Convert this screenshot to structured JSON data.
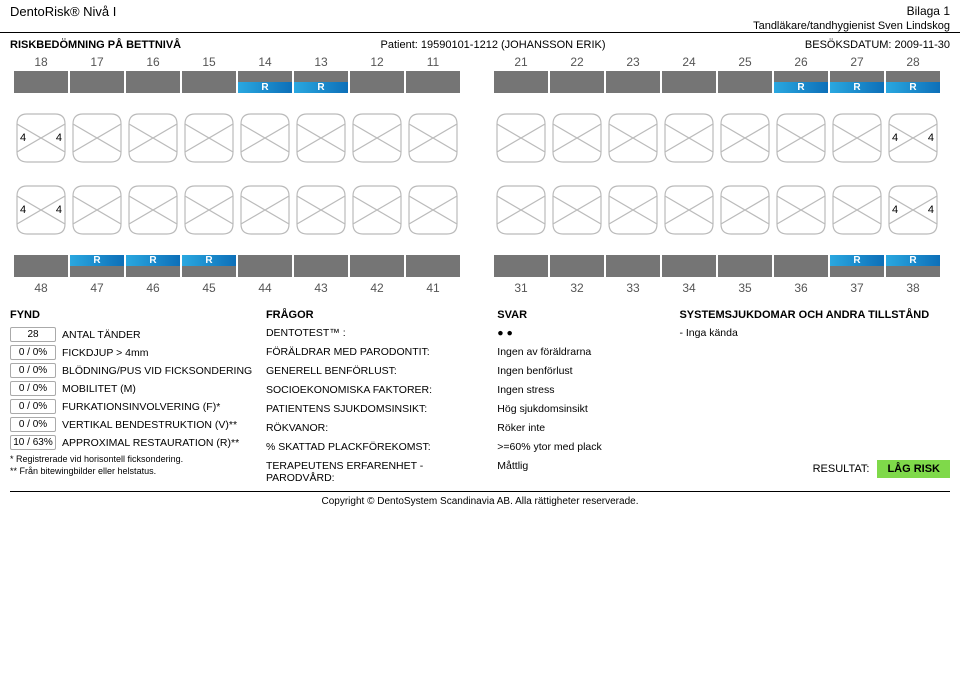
{
  "header": {
    "product": "DentoRisk® Nivå I",
    "attachment": "Bilaga 1",
    "practitioner": "Tandläkare/tandhygienist Sven Lindskog"
  },
  "info": {
    "title": "RISKBEDÖMNING PÅ BETTNIVÅ",
    "patient_label": "Patient: 19590101-1212 (JOHANSSON ERIK)",
    "visit_label": "BESÖKSDATUM: 2009-11-30"
  },
  "teeth": {
    "upper_nums": [
      "18",
      "17",
      "16",
      "15",
      "14",
      "13",
      "12",
      "11",
      "21",
      "22",
      "23",
      "24",
      "25",
      "26",
      "27",
      "28"
    ],
    "lower_nums": [
      "48",
      "47",
      "46",
      "45",
      "44",
      "43",
      "42",
      "41",
      "31",
      "32",
      "33",
      "34",
      "35",
      "36",
      "37",
      "38"
    ],
    "upper_bar": [
      {
        "c": "gray",
        "r": ""
      },
      {
        "c": "gray",
        "r": ""
      },
      {
        "c": "gray",
        "r": ""
      },
      {
        "c": "gray",
        "r": ""
      },
      {
        "c": "blue",
        "r": "R"
      },
      {
        "c": "blue",
        "r": "R"
      },
      {
        "c": "gray",
        "r": ""
      },
      {
        "c": "gray",
        "r": ""
      },
      {
        "c": "gray",
        "r": ""
      },
      {
        "c": "gray",
        "r": ""
      },
      {
        "c": "gray",
        "r": ""
      },
      {
        "c": "gray",
        "r": ""
      },
      {
        "c": "gray",
        "r": ""
      },
      {
        "c": "blue",
        "r": "R"
      },
      {
        "c": "blue",
        "r": "R"
      },
      {
        "c": "blue",
        "r": "R"
      }
    ],
    "lower_bar": [
      {
        "c": "gray",
        "r": ""
      },
      {
        "c": "blue",
        "r": "R"
      },
      {
        "c": "blue",
        "r": "R"
      },
      {
        "c": "blue",
        "r": "R"
      },
      {
        "c": "gray",
        "r": ""
      },
      {
        "c": "gray",
        "r": ""
      },
      {
        "c": "gray",
        "r": ""
      },
      {
        "c": "gray",
        "r": ""
      },
      {
        "c": "gray",
        "r": ""
      },
      {
        "c": "gray",
        "r": ""
      },
      {
        "c": "gray",
        "r": ""
      },
      {
        "c": "gray",
        "r": ""
      },
      {
        "c": "gray",
        "r": ""
      },
      {
        "c": "gray",
        "r": ""
      },
      {
        "c": "blue",
        "r": "R"
      },
      {
        "c": "blue",
        "r": "R"
      }
    ],
    "upper_labels": [
      {
        "l": "4",
        "r": "4"
      },
      {
        "l": "",
        "r": ""
      },
      {
        "l": "",
        "r": ""
      },
      {
        "l": "",
        "r": ""
      },
      {
        "l": "",
        "r": ""
      },
      {
        "l": "",
        "r": ""
      },
      {
        "l": "",
        "r": ""
      },
      {
        "l": "",
        "r": ""
      },
      {
        "l": "",
        "r": ""
      },
      {
        "l": "",
        "r": ""
      },
      {
        "l": "",
        "r": ""
      },
      {
        "l": "",
        "r": ""
      },
      {
        "l": "",
        "r": ""
      },
      {
        "l": "",
        "r": ""
      },
      {
        "l": "",
        "r": ""
      },
      {
        "l": "4",
        "r": "4"
      }
    ],
    "lower_labels": [
      {
        "l": "4",
        "r": "4"
      },
      {
        "l": "",
        "r": ""
      },
      {
        "l": "",
        "r": ""
      },
      {
        "l": "",
        "r": ""
      },
      {
        "l": "",
        "r": ""
      },
      {
        "l": "",
        "r": ""
      },
      {
        "l": "",
        "r": ""
      },
      {
        "l": "",
        "r": ""
      },
      {
        "l": "",
        "r": ""
      },
      {
        "l": "",
        "r": ""
      },
      {
        "l": "",
        "r": ""
      },
      {
        "l": "",
        "r": ""
      },
      {
        "l": "",
        "r": ""
      },
      {
        "l": "",
        "r": ""
      },
      {
        "l": "",
        "r": ""
      },
      {
        "l": "4",
        "r": "4"
      }
    ]
  },
  "fynd": {
    "title": "FYND",
    "rows": [
      {
        "val": "28",
        "label": "ANTAL TÄNDER"
      },
      {
        "val": "0 / 0%",
        "label": "FICKDJUP > 4mm"
      },
      {
        "val": "0 / 0%",
        "label": "BLÖDNING/PUS VID FICKSONDERING"
      },
      {
        "val": "0 / 0%",
        "label": "MOBILITET (M)"
      },
      {
        "val": "0 / 0%",
        "label": "FURKATIONSINVOLVERING (F)*"
      },
      {
        "val": "0 / 0%",
        "label": "VERTIKAL BENDESTRUKTION (V)**"
      },
      {
        "val": "10 / 63%",
        "label": "APPROXIMAL RESTAURATION (R)**"
      }
    ],
    "foot1": "* Registrerade vid horisontell ficksondering.",
    "foot2": "** Från bitewingbilder eller helstatus."
  },
  "fragor": {
    "title": "FRÅGOR",
    "rows": [
      "DENTOTEST™ :",
      "FÖRÄLDRAR MED PARODONTIT:",
      "GENERELL BENFÖRLUST:",
      "SOCIOEKONOMISKA FAKTORER:",
      "PATIENTENS SJUKDOMSINSIKT:",
      "RÖKVANOR:",
      "% SKATTAD PLACKFÖREKOMST:",
      "TERAPEUTENS ERFARENHET - PARODVÅRD:"
    ]
  },
  "svar": {
    "title": "SVAR",
    "rows": [
      "● ●",
      "Ingen av föräldrarna",
      "Ingen benförlust",
      "Ingen stress",
      "Hög sjukdomsinsikt",
      "Röker inte",
      ">=60% ytor med plack",
      "Måttlig"
    ]
  },
  "system": {
    "title": "SYSTEMSJUKDOMAR OCH ANDRA TILLSTÅND",
    "line": "- Inga kända",
    "result_label": "RESULTAT:",
    "result_value": "LÅG RISK"
  },
  "copyright": "Copyright © DentoSystem Scandinavia AB. Alla rättigheter reserverade."
}
